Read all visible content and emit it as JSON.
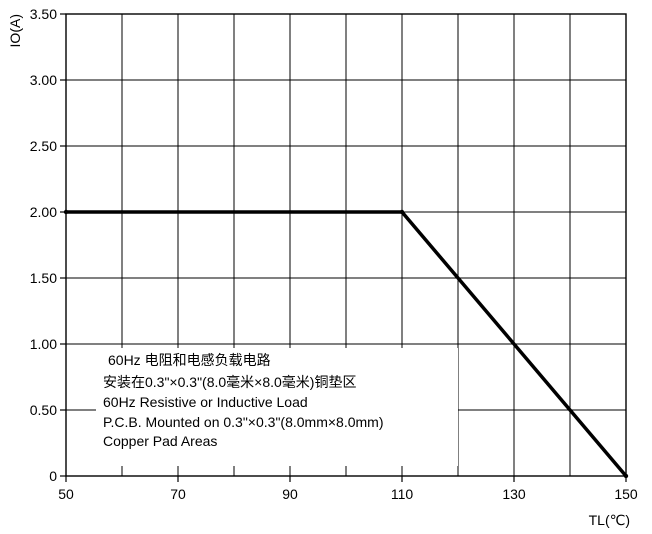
{
  "chart_data": {
    "type": "line",
    "ylabel": "IO(A)",
    "xlabel": "TL(℃)",
    "xlim": [
      50,
      150
    ],
    "ylim": [
      0,
      3.5
    ],
    "x_ticks": [
      50,
      70,
      90,
      110,
      130,
      150
    ],
    "x_tick_labels": [
      "50",
      "70",
      "90",
      "110",
      "130",
      "150"
    ],
    "x_gridlines": [
      50,
      60,
      70,
      80,
      90,
      100,
      110,
      120,
      130,
      140,
      150
    ],
    "y_ticks": [
      0,
      0.5,
      1.0,
      1.5,
      2.0,
      2.5,
      3.0,
      3.5
    ],
    "y_tick_labels": [
      "0",
      "0.50",
      "1.00",
      "1.50",
      "2.00",
      "2.50",
      "3.00",
      "3.50"
    ],
    "grid": true,
    "series": [
      {
        "x": [
          50,
          110,
          150
        ],
        "y": [
          2.0,
          2.0,
          0
        ],
        "color": "#000000"
      }
    ],
    "annotation": [
      "60Hz 电阻和电感负载电路",
      "安装在0.3\"×0.3\"(8.0毫米×8.0毫米)铜垫区",
      "60Hz Resistive or Inductive Load",
      "P.C.B. Mounted on 0.3\"×0.3\"(8.0mm×8.0mm)",
      "Copper Pad Areas"
    ]
  }
}
